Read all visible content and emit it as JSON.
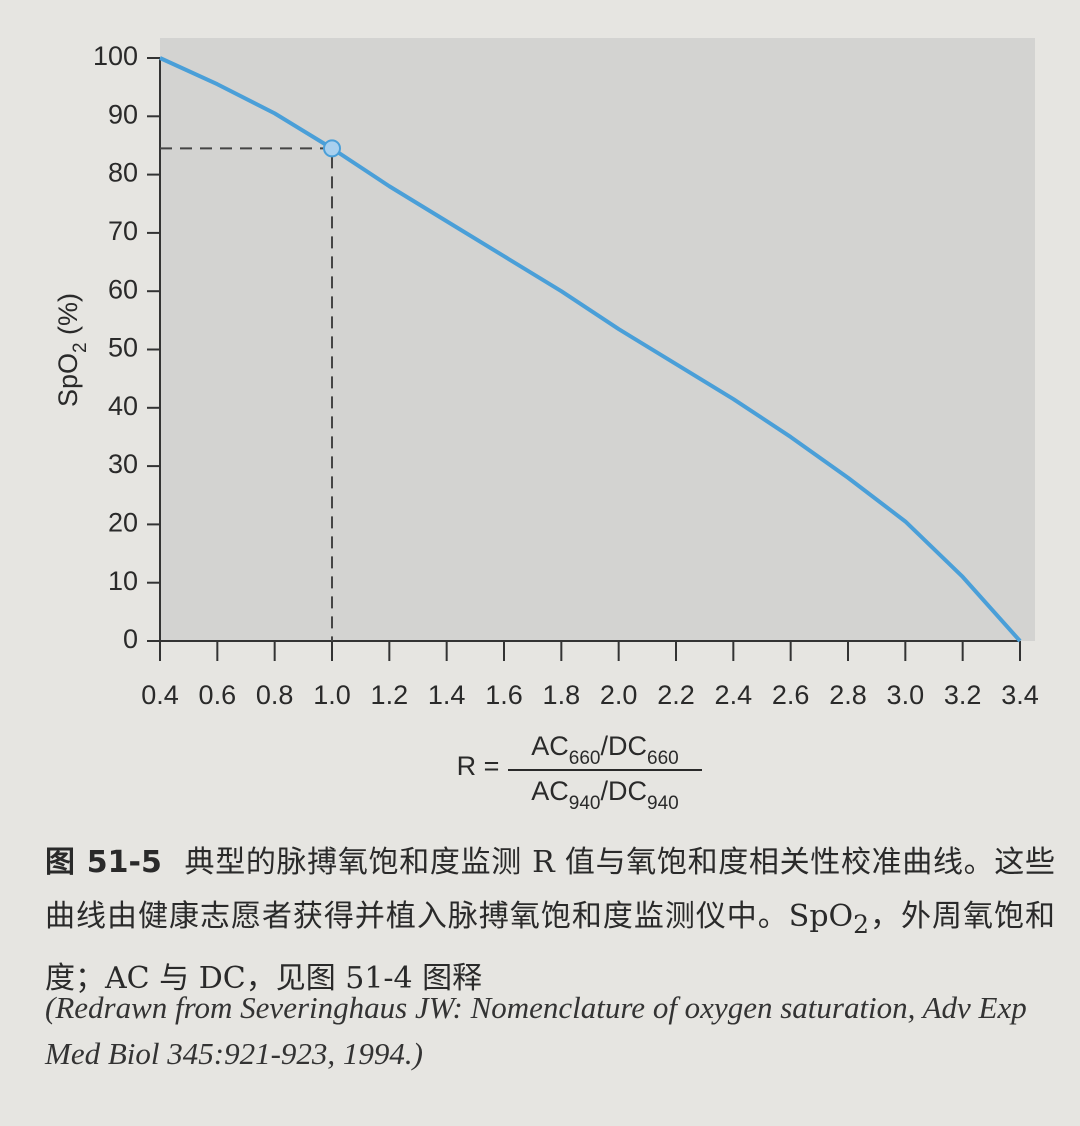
{
  "chart_data": {
    "type": "line",
    "y_label_parts": [
      "SpO",
      "2",
      " (%)"
    ],
    "x_label": {
      "lhs": "R =",
      "numerator_parts": [
        "AC",
        "660",
        "/DC",
        "660"
      ],
      "denominator_parts": [
        "AC",
        "940",
        "/DC",
        "940"
      ]
    },
    "x": [
      0.4,
      0.6,
      0.8,
      1.0,
      1.2,
      1.4,
      1.6,
      1.8,
      2.0,
      2.2,
      2.4,
      2.6,
      2.8,
      3.0,
      3.2,
      3.4
    ],
    "values": [
      100,
      95.5,
      90.5,
      84.5,
      78,
      72,
      66,
      60,
      53.5,
      47.5,
      41.5,
      35,
      28,
      20.5,
      11,
      0
    ],
    "color": "#4a9fd8",
    "highlight_index": 3,
    "xlim": [
      0.4,
      3.4
    ],
    "xticks": [
      0.4,
      0.6,
      0.8,
      {
        "value": 1,
        "label": "1.0"
      },
      1.2,
      1.4,
      1.6,
      1.8,
      {
        "value": 2,
        "label": "2.0"
      },
      2.2,
      2.4,
      2.6,
      2.8,
      {
        "value": 3,
        "label": "3.0"
      },
      3.2,
      3.4
    ],
    "ylim": [
      0,
      100
    ],
    "yticks": [
      0,
      10,
      20,
      30,
      40,
      50,
      60,
      70,
      80,
      90,
      100
    ]
  },
  "caption": {
    "figure_number": "图 51-5",
    "text_parts": [
      "典型的脉搏氧饱和度监测 R 值与氧饱和度相关性校准曲线。这些曲线由健康志愿者获得并植入脉搏氧饱和度监测仪中。SpO",
      "2",
      "，外周氧饱和度；AC 与 DC，见图 51-4 图释"
    ],
    "citation": "(Redrawn from Severinghaus JW: Nomenclature of oxygen saturation, Adv Exp Med Biol 345:921-923, 1994.)"
  }
}
